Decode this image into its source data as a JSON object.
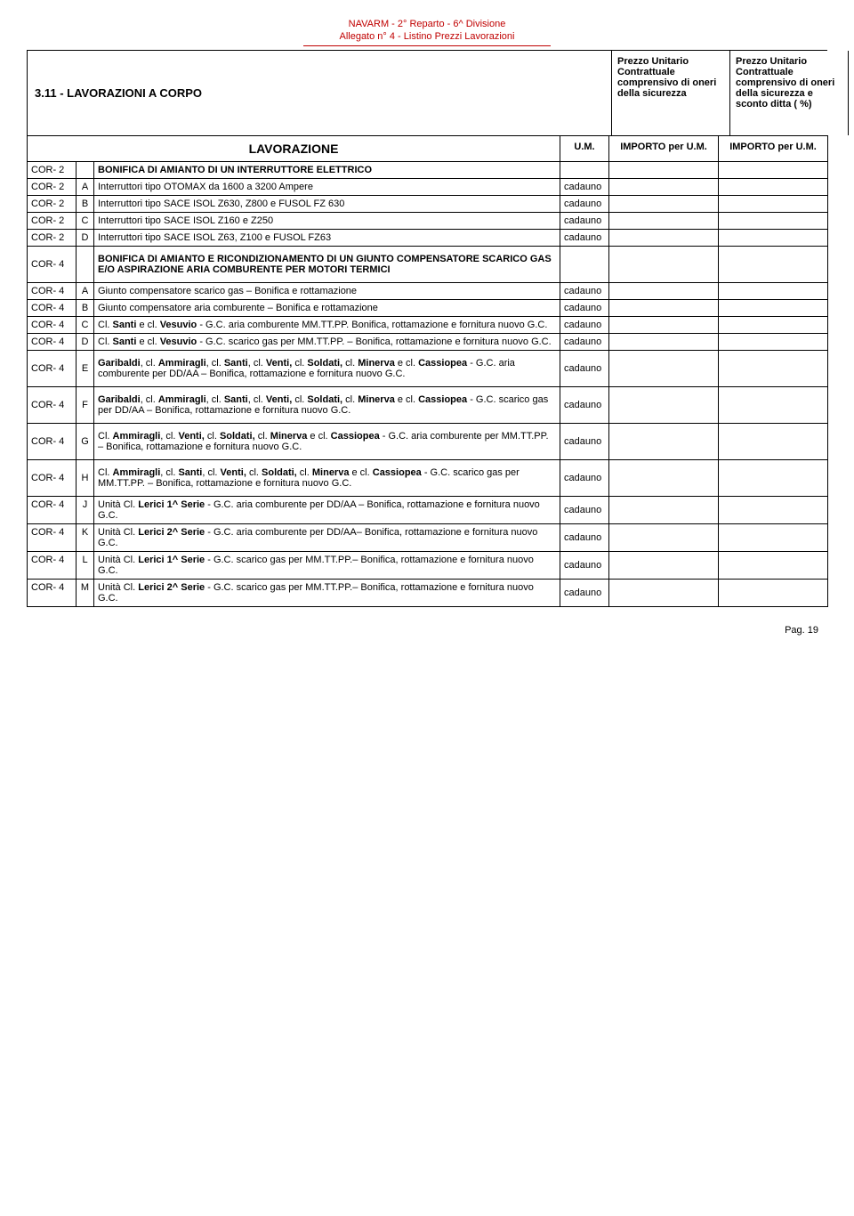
{
  "header": {
    "line1": "NAVARM - 2° Reparto - 6^ Divisione",
    "line2": "Allegato n° 4 - Listino Prezzi Lavorazioni"
  },
  "banner": {
    "title": "3.11 - LAVORAZIONI A CORPO",
    "price1": "Prezzo Unitario Contrattuale comprensivo di oneri della sicurezza",
    "price2": "Prezzo Unitario Contrattuale comprensivo di oneri della sicurezza e sconto ditta     ( %)"
  },
  "table_head": {
    "lav": "LAVORAZIONE",
    "um": "U.M.",
    "imp1": "IMPORTO per U.M.",
    "imp2": "IMPORTO per U.M."
  },
  "rows": [
    {
      "code": "COR- 2",
      "letter": "",
      "desc": "BONIFICA DI AMIANTO DI UN INTERRUTTORE ELETTRICO",
      "um": "",
      "bold": true
    },
    {
      "code": "COR- 2",
      "letter": "A",
      "desc": "Interruttori tipo OTOMAX da 1600 a 3200 Ampere",
      "um": "cadauno"
    },
    {
      "code": "COR- 2",
      "letter": "B",
      "desc": "Interruttori tipo SACE ISOL  Z630, Z800  e FUSOL  FZ 630",
      "um": "cadauno"
    },
    {
      "code": "COR- 2",
      "letter": "C",
      "desc": "Interruttori tipo SACE ISOL Z160 e Z250",
      "um": "cadauno"
    },
    {
      "code": "COR- 2",
      "letter": "D",
      "desc": "Interruttori tipo SACE ISOL Z63, Z100 e FUSOL FZ63",
      "um": "cadauno"
    },
    {
      "code": "COR- 4",
      "letter": "",
      "desc": "BONIFICA DI AMIANTO E RICONDIZIONAMENTO DI UN GIUNTO COMPENSATORE SCARICO GAS E/O ASPIRAZIONE ARIA COMBURENTE PER MOTORI TERMICI",
      "um": "",
      "bold": true,
      "tall": true
    },
    {
      "code": "COR- 4",
      "letter": "A",
      "desc": "Giunto compensatore scarico gas – Bonifica e rottamazione",
      "um": "cadauno"
    },
    {
      "code": "COR- 4",
      "letter": "B",
      "desc": "Giunto compensatore aria comburente – Bonifica e rottamazione",
      "um": "cadauno"
    },
    {
      "code": "COR- 4",
      "letter": "C",
      "html": "Cl. <b>Santi</b> e cl. <b>Vesuvio</b> - G.C. aria comburente MM.TT.PP.  Bonifica, rottamazione e fornitura nuovo G.C.",
      "um": "cadauno"
    },
    {
      "code": "COR- 4",
      "letter": "D",
      "html": "Cl. <b>Santi</b> e cl. <b>Vesuvio</b> - G.C. scarico gas per MM.TT.PP. – Bonifica, rottamazione e fornitura nuovo G.C.",
      "um": "cadauno"
    },
    {
      "code": "COR- 4",
      "letter": "E",
      "html": "<b>Garibaldi</b>, cl. <b>Ammiragli</b>, cl. <b>Santi</b>, cl. <b>Venti, </b>cl. <b>Soldati,</b> cl. <b>Minerva</b> e cl. <b>Cassiopea</b>  - G.C. aria comburente per DD/AA – Bonifica, rottamazione e fornitura nuovo G.C.",
      "um": "cadauno",
      "tall": true
    },
    {
      "code": "COR- 4",
      "letter": "F",
      "html": "<b>Garibaldi</b>, cl. <b>Ammiragli</b>, cl. <b>Santi</b>, cl. <b>Venti, </b>cl. <b>Soldati,</b> cl. <b>Minerva</b> e cl. <b>Cassiopea</b> - G.C. scarico gas per DD/AA – Bonifica, rottamazione e fornitura nuovo G.C.",
      "um": "cadauno",
      "tall": true
    },
    {
      "code": "COR- 4",
      "letter": "G",
      "html": "Cl. <b>Ammiragli</b>, cl. <b>Venti, </b>cl. <b>Soldati,</b> cl. <b>Minerva</b> e cl. <b>Cassiopea</b> - G.C. aria comburente per MM.TT.PP. – Bonifica, rottamazione e fornitura nuovo G.C.",
      "um": "cadauno",
      "tall": true
    },
    {
      "code": "COR- 4",
      "letter": "H",
      "html": "Cl. <b>Ammiragli</b>, cl. <b>Santi</b>, cl. <b>Venti, </b>cl. <b>Soldati,</b> cl. <b>Minerva</b> e cl. <b>Cassiopea</b> - G.C. scarico gas per MM.TT.PP. – Bonifica, rottamazione e fornitura nuovo G.C.",
      "um": "cadauno",
      "tall": true
    },
    {
      "code": "COR- 4",
      "letter": "J",
      "html": "Unità Cl. <b>Lerici 1^ Serie</b> - G.C. aria comburente per DD/AA – Bonifica, rottamazione e fornitura nuovo G.C.",
      "um": "cadauno"
    },
    {
      "code": "COR- 4",
      "letter": "K",
      "html": "Unità Cl. <b>Lerici 2^ Serie</b> - G.C. aria comburente per DD/AA– Bonifica, rottamazione e fornitura nuovo G.C.",
      "um": "cadauno"
    },
    {
      "code": "COR- 4",
      "letter": "L",
      "html": "Unità Cl. <b>Lerici 1^ Serie</b> - G.C. scarico gas per MM.TT.PP.– Bonifica, rottamazione e fornitura nuovo G.C.",
      "um": "cadauno"
    },
    {
      "code": "COR- 4",
      "letter": "M",
      "html": "Unità Cl. <b>Lerici 2^ Serie</b> - G.C. scarico gas per MM.TT.PP.– Bonifica, rottamazione e fornitura nuovo G.C.",
      "um": "cadauno"
    }
  ],
  "footer": "Pag.  19"
}
